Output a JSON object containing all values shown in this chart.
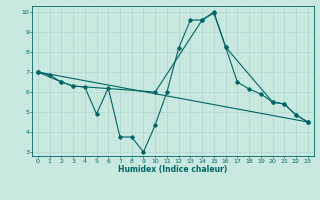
{
  "title": "",
  "xlabel": "Humidex (Indice chaleur)",
  "background_color": "#c8e8e0",
  "grid_color": "#b0d8d0",
  "line_color": "#006666",
  "xlim": [
    -0.5,
    23.5
  ],
  "ylim": [
    2.8,
    10.3
  ],
  "xticks": [
    0,
    1,
    2,
    3,
    4,
    5,
    6,
    7,
    8,
    9,
    10,
    11,
    12,
    13,
    14,
    15,
    16,
    17,
    18,
    19,
    20,
    21,
    22,
    23
  ],
  "yticks": [
    3,
    4,
    5,
    6,
    7,
    8,
    9,
    10
  ],
  "line1_x": [
    0,
    1,
    2,
    3,
    4,
    5,
    6,
    7,
    8,
    9,
    10,
    11,
    12,
    13,
    14,
    15,
    16,
    17,
    18,
    19,
    20,
    21,
    22,
    23
  ],
  "line1_y": [
    7.0,
    6.85,
    6.5,
    6.3,
    6.25,
    4.9,
    6.2,
    3.75,
    3.75,
    3.0,
    4.35,
    6.0,
    8.2,
    9.6,
    9.6,
    10.0,
    8.25,
    6.5,
    6.15,
    5.9,
    5.5,
    5.4,
    4.85,
    4.5
  ],
  "line2_x": [
    0,
    2,
    3,
    10,
    14,
    15,
    16,
    20,
    21,
    22,
    23
  ],
  "line2_y": [
    7.0,
    6.5,
    6.3,
    6.0,
    9.6,
    9.95,
    8.25,
    5.5,
    5.4,
    4.85,
    4.5
  ],
  "line3_x": [
    0,
    23
  ],
  "line3_y": [
    7.0,
    4.5
  ]
}
